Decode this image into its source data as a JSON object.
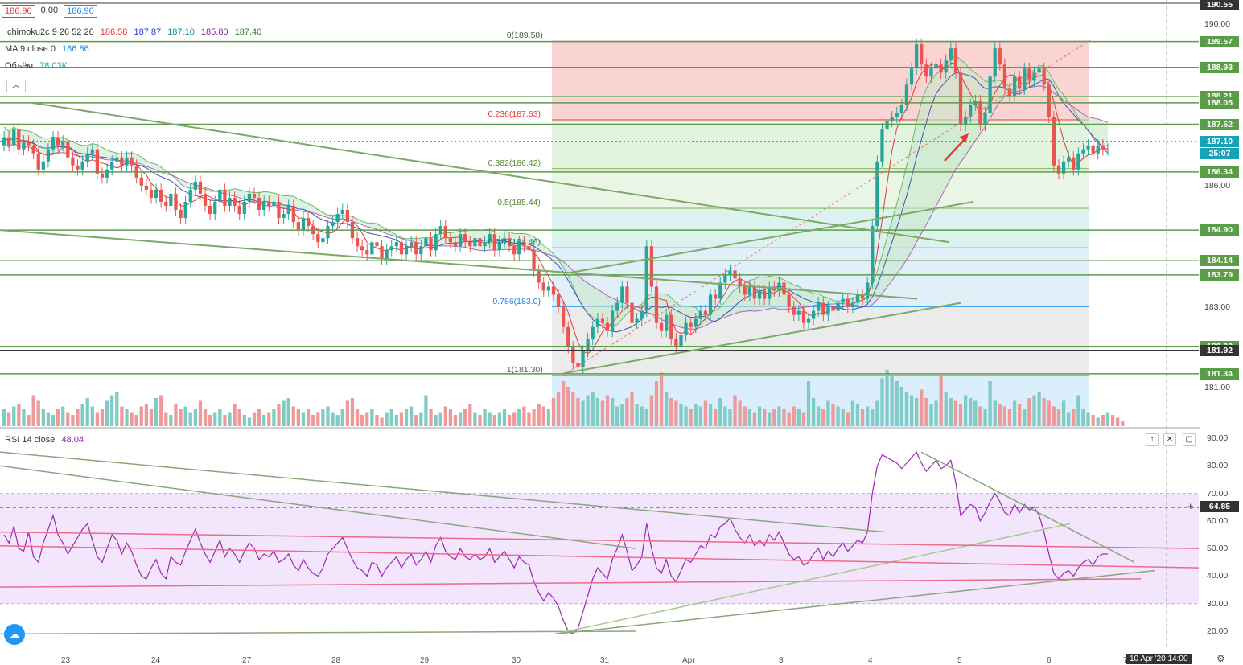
{
  "header": {
    "price_open": "186.90",
    "price_change": "0.00",
    "price_last": "186.90"
  },
  "legend": {
    "ichimoku_label": "Ichimoku2c 9 26 52 26",
    "ichimoku_values": [
      "186.58",
      "187.87",
      "187.10",
      "185.80",
      "187.40"
    ],
    "ichimoku_colors": [
      "#e53935",
      "#1e3ad8",
      "#0a9396",
      "#8e24aa",
      "#2e7d32"
    ],
    "ma_label": "MA 9 close 0",
    "ma_value": "186.86",
    "volume_label": "Объём",
    "volume_value": "78.03K",
    "rsi_label": "RSI 14 close",
    "rsi_value": "48.04"
  },
  "time_labels": [
    "23",
    "24",
    "27",
    "28",
    "29",
    "30",
    "31",
    "Apr",
    "3",
    "4",
    "5",
    "6",
    "7"
  ],
  "time_cursor_label": "10 Apr '20   14:00",
  "fib_labels": [
    "0(189.58)",
    "0.236(187.63)",
    "0.382(186.42)",
    "0.5(185.44)",
    "0.618(184.46)",
    "0.786(183.0)",
    "1(181.30)"
  ],
  "price_axis_ticks": [
    "190.55",
    "190.00",
    "187.10",
    "186.00",
    "183.00",
    "181.00"
  ],
  "rsi_axis_ticks": [
    "90.00",
    "80.00",
    "70.00",
    "60.00",
    "50.00",
    "40.00",
    "30.00",
    "20.00"
  ],
  "rsi_cursor_tag": "64.85",
  "price_tags": [
    {
      "text": "189.57",
      "color": "#5b9c48"
    },
    {
      "text": "188.93",
      "color": "#5b9c48"
    },
    {
      "text": "188.21",
      "color": "#5b9c48"
    },
    {
      "text": "188.05",
      "color": "#5b9c48"
    },
    {
      "text": "187.52",
      "color": "#5b9c48"
    },
    {
      "text": "187.10",
      "color": "#17a2b8"
    },
    {
      "text": "25:07",
      "color": "#17a2b8"
    },
    {
      "text": "186.34",
      "color": "#5b9c48"
    },
    {
      "text": "184.90",
      "color": "#5b9c48"
    },
    {
      "text": "184.14",
      "color": "#5b9c48"
    },
    {
      "text": "183.79",
      "color": "#5b9c48"
    },
    {
      "text": "182.02",
      "color": "#5b9c48"
    },
    {
      "text": "181.92",
      "color": "#333333"
    },
    {
      "text": "181.34",
      "color": "#5b9c48"
    }
  ],
  "chart_data": {
    "type": "candlestick",
    "symbol_price_last": 186.9,
    "ylim": [
      180.0,
      190.6
    ],
    "horizontal_levels": [
      189.57,
      188.93,
      188.21,
      188.05,
      187.52,
      186.34,
      184.9,
      184.14,
      183.79,
      182.02,
      181.92,
      181.34
    ],
    "fibonacci": [
      {
        "ratio": 0,
        "price": 189.58
      },
      {
        "ratio": 0.236,
        "price": 187.63
      },
      {
        "ratio": 0.382,
        "price": 186.42
      },
      {
        "ratio": 0.5,
        "price": 185.44
      },
      {
        "ratio": 0.618,
        "price": 184.46
      },
      {
        "ratio": 0.786,
        "price": 183.0
      },
      {
        "ratio": 1,
        "price": 181.3
      }
    ],
    "candles_close": [
      187.2,
      187.0,
      187.4,
      186.9,
      187.1,
      187.0,
      186.8,
      186.4,
      186.6,
      186.9,
      187.2,
      187.0,
      187.1,
      186.7,
      186.5,
      186.4,
      186.6,
      186.8,
      186.9,
      186.3,
      186.2,
      186.4,
      186.6,
      186.7,
      186.5,
      186.7,
      186.5,
      186.2,
      186.0,
      185.9,
      185.7,
      185.9,
      185.6,
      185.5,
      185.8,
      185.4,
      185.2,
      185.6,
      185.9,
      186.1,
      185.8,
      185.5,
      185.3,
      185.6,
      185.9,
      185.5,
      185.7,
      185.5,
      185.3,
      185.6,
      185.8,
      185.7,
      185.4,
      185.6,
      185.5,
      185.6,
      185.2,
      185.3,
      185.5,
      185.1,
      184.9,
      185.2,
      185.0,
      184.8,
      184.6,
      184.7,
      185.0,
      185.1,
      185.3,
      185.4,
      185.1,
      184.7,
      184.5,
      184.4,
      184.3,
      184.6,
      184.5,
      184.2,
      184.4,
      184.5,
      184.6,
      184.3,
      184.5,
      184.6,
      184.3,
      184.5,
      184.7,
      184.4,
      184.8,
      185.0,
      184.7,
      184.6,
      184.5,
      184.8,
      184.6,
      184.5,
      184.7,
      184.5,
      184.6,
      184.8,
      184.4,
      184.6,
      184.7,
      184.5,
      184.3,
      184.6,
      184.5,
      184.4,
      183.9,
      183.6,
      183.4,
      183.5,
      183.3,
      183.0,
      182.5,
      182.0,
      181.6,
      181.5,
      181.9,
      182.2,
      182.5,
      182.7,
      182.6,
      182.4,
      182.9,
      183.1,
      183.5,
      183.1,
      182.6,
      182.7,
      182.9,
      184.5,
      183.5,
      182.6,
      182.4,
      182.8,
      182.2,
      182.0,
      182.3,
      182.6,
      182.5,
      182.7,
      182.9,
      182.8,
      183.3,
      183.2,
      183.6,
      183.8,
      183.9,
      183.7,
      183.5,
      183.3,
      183.5,
      183.2,
      183.4,
      183.2,
      183.5,
      183.4,
      183.6,
      183.3,
      183.0,
      182.8,
      182.9,
      182.6,
      182.7,
      182.9,
      183.1,
      182.8,
      183.0,
      182.9,
      183.1,
      183.2,
      183.0,
      183.1,
      183.3,
      183.2,
      183.6,
      185.0,
      186.6,
      187.4,
      187.6,
      187.7,
      187.8,
      188.0,
      188.5,
      188.9,
      189.5,
      189.0,
      188.7,
      188.9,
      189.0,
      188.8,
      189.1,
      189.4,
      188.8,
      187.5,
      187.7,
      188.0,
      188.1,
      187.5,
      187.8,
      188.7,
      189.4,
      189.0,
      188.4,
      188.2,
      188.7,
      188.4,
      188.9,
      188.6,
      188.8,
      188.9,
      188.5,
      187.7,
      186.5,
      186.3,
      186.6,
      186.7,
      186.4,
      186.8,
      186.9,
      187.0,
      186.8,
      187.0,
      186.9,
      186.9
    ],
    "volume": [
      0.3,
      0.25,
      0.35,
      0.4,
      0.3,
      0.2,
      0.55,
      0.45,
      0.3,
      0.25,
      0.2,
      0.3,
      0.35,
      0.25,
      0.2,
      0.3,
      0.4,
      0.5,
      0.35,
      0.25,
      0.3,
      0.45,
      0.55,
      0.6,
      0.35,
      0.3,
      0.25,
      0.2,
      0.35,
      0.4,
      0.3,
      0.5,
      0.55,
      0.25,
      0.2,
      0.4,
      0.3,
      0.35,
      0.25,
      0.3,
      0.45,
      0.3,
      0.2,
      0.25,
      0.3,
      0.2,
      0.25,
      0.4,
      0.3,
      0.2,
      0.15,
      0.25,
      0.3,
      0.2,
      0.25,
      0.3,
      0.4,
      0.45,
      0.5,
      0.35,
      0.3,
      0.25,
      0.3,
      0.2,
      0.25,
      0.3,
      0.35,
      0.25,
      0.2,
      0.3,
      0.45,
      0.5,
      0.3,
      0.2,
      0.25,
      0.3,
      0.2,
      0.15,
      0.25,
      0.3,
      0.2,
      0.25,
      0.3,
      0.35,
      0.2,
      0.25,
      0.55,
      0.3,
      0.2,
      0.25,
      0.35,
      0.3,
      0.2,
      0.25,
      0.3,
      0.4,
      0.25,
      0.2,
      0.3,
      0.25,
      0.2,
      0.25,
      0.3,
      0.2,
      0.25,
      0.3,
      0.35,
      0.25,
      0.3,
      0.4,
      0.35,
      0.3,
      0.5,
      0.6,
      0.8,
      0.7,
      0.6,
      0.5,
      0.45,
      0.55,
      0.6,
      0.5,
      0.45,
      0.55,
      0.5,
      0.35,
      0.4,
      0.5,
      0.6,
      0.4,
      0.35,
      0.3,
      0.55,
      0.8,
      0.95,
      0.6,
      0.5,
      0.45,
      0.4,
      0.35,
      0.3,
      0.4,
      0.35,
      0.45,
      0.4,
      0.3,
      0.5,
      0.35,
      0.3,
      0.55,
      0.45,
      0.35,
      0.3,
      0.25,
      0.35,
      0.3,
      0.25,
      0.3,
      0.35,
      0.3,
      0.25,
      0.35,
      0.3,
      0.25,
      0.8,
      0.5,
      0.35,
      0.3,
      0.45,
      0.4,
      0.35,
      0.3,
      0.25,
      0.45,
      0.4,
      0.3,
      0.35,
      0.3,
      0.45,
      0.85,
      1.0,
      0.9,
      0.8,
      0.7,
      0.6,
      0.55,
      0.5,
      0.65,
      0.5,
      0.4,
      0.45,
      0.9,
      0.6,
      0.5,
      0.45,
      0.4,
      0.55,
      0.5,
      0.45,
      0.35,
      0.3,
      0.8,
      0.45,
      0.4,
      0.35,
      0.3,
      0.45,
      0.4,
      0.3,
      0.5,
      0.55,
      0.6,
      0.5,
      0.45,
      0.35,
      0.3,
      0.45,
      0.25,
      0.3,
      0.55,
      0.3,
      0.25,
      0.2,
      0.15,
      0.2,
      0.25,
      0.2,
      0.15,
      0.1
    ],
    "rsi": [
      55,
      52,
      58,
      50,
      49,
      56,
      47,
      45,
      52,
      57,
      62,
      55,
      52,
      48,
      51,
      54,
      57,
      59,
      53,
      47,
      45,
      50,
      55,
      53,
      48,
      52,
      49,
      44,
      40,
      39,
      43,
      46,
      41,
      39,
      47,
      45,
      44,
      49,
      53,
      57,
      52,
      48,
      45,
      49,
      53,
      47,
      50,
      48,
      45,
      49,
      52,
      50,
      46,
      48,
      47,
      49,
      45,
      46,
      48,
      44,
      42,
      46,
      43,
      41,
      40,
      43,
      48,
      50,
      52,
      54,
      50,
      46,
      43,
      42,
      40,
      45,
      44,
      40,
      43,
      45,
      47,
      43,
      46,
      48,
      44,
      46,
      49,
      45,
      51,
      54,
      49,
      47,
      46,
      50,
      47,
      46,
      48,
      46,
      47,
      50,
      45,
      47,
      49,
      46,
      43,
      47,
      45,
      44,
      38,
      34,
      31,
      34,
      32,
      29,
      24,
      20,
      19,
      21,
      27,
      33,
      39,
      43,
      41,
      39,
      46,
      50,
      55,
      49,
      42,
      44,
      47,
      59,
      50,
      43,
      41,
      46,
      40,
      38,
      42,
      46,
      45,
      48,
      51,
      50,
      55,
      54,
      58,
      59,
      61,
      57,
      54,
      52,
      55,
      51,
      53,
      51,
      55,
      53,
      56,
      52,
      48,
      46,
      47,
      44,
      45,
      48,
      50,
      46,
      49,
      47,
      50,
      52,
      49,
      51,
      53,
      52,
      56,
      70,
      80,
      84,
      83,
      82,
      81,
      79,
      81,
      83,
      85,
      81,
      78,
      80,
      82,
      79,
      80,
      82,
      74,
      62,
      64,
      66,
      65,
      60,
      63,
      67,
      70,
      67,
      63,
      62,
      66,
      63,
      66,
      64,
      65,
      62,
      56,
      48,
      41,
      39,
      41,
      42,
      40,
      43,
      45,
      46,
      44,
      47,
      48,
      48
    ]
  }
}
